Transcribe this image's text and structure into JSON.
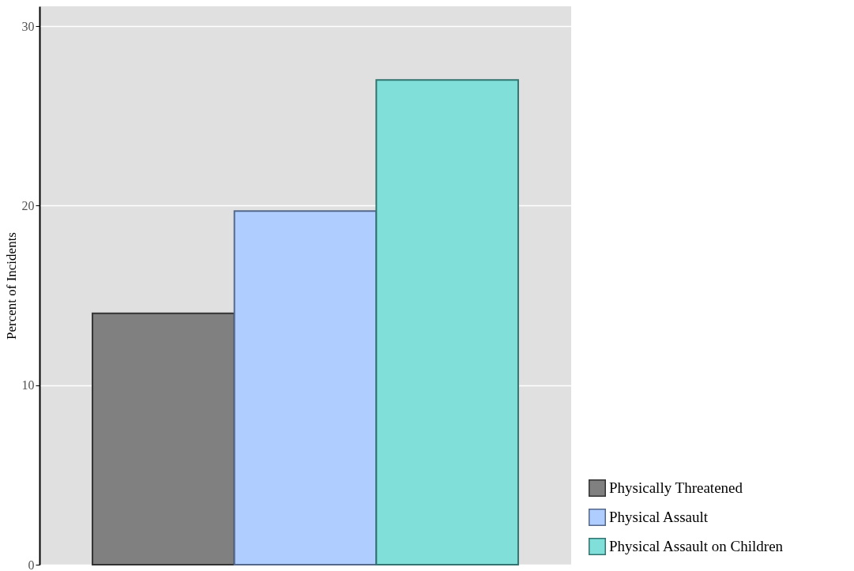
{
  "chart_data": {
    "type": "bar",
    "ylabel": "Percent of Incidents",
    "categories": [
      null
    ],
    "series": [
      {
        "name": "Physically Threatened",
        "color": "#808080",
        "values": [
          14.0
        ]
      },
      {
        "name": "Physical Assault",
        "color": "#b0cdff",
        "values": [
          19.7
        ]
      },
      {
        "name": "Physical Assault on Children",
        "color": "#80dfd8",
        "values": [
          27.0
        ]
      }
    ],
    "ylim": [
      0,
      31.1
    ],
    "yticks": [
      0,
      10,
      20,
      30
    ],
    "grid": "y",
    "legend": "bottom right"
  }
}
